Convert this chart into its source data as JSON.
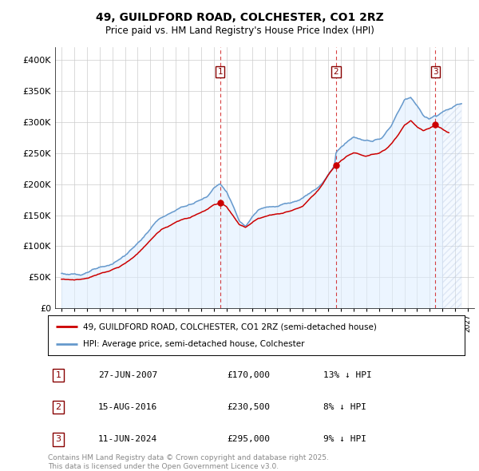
{
  "title": "49, GUILDFORD ROAD, COLCHESTER, CO1 2RZ",
  "subtitle": "Price paid vs. HM Land Registry's House Price Index (HPI)",
  "legend_line1": "49, GUILDFORD ROAD, COLCHESTER, CO1 2RZ (semi-detached house)",
  "legend_line2": "HPI: Average price, semi-detached house, Colchester",
  "transactions": [
    {
      "num": 1,
      "date": "27-JUN-2007",
      "price": 170000,
      "hpi_diff": "13% ↓ HPI",
      "year": 2007.49
    },
    {
      "num": 2,
      "date": "15-AUG-2016",
      "price": 230500,
      "hpi_diff": "8% ↓ HPI",
      "year": 2016.62
    },
    {
      "num": 3,
      "date": "11-JUN-2024",
      "price": 295000,
      "hpi_diff": "9% ↓ HPI",
      "year": 2024.44
    }
  ],
  "footer": "Contains HM Land Registry data © Crown copyright and database right 2025.\nThis data is licensed under the Open Government Licence v3.0.",
  "line_color_red": "#cc0000",
  "line_color_blue": "#6699cc",
  "fill_color_blue": "#ddeeff",
  "background_color": "#ffffff",
  "grid_color": "#cccccc",
  "ylim": [
    0,
    420000
  ],
  "yticks": [
    0,
    50000,
    100000,
    150000,
    200000,
    250000,
    300000,
    350000,
    400000
  ],
  "xlim_start": 1994.5,
  "xlim_end": 2027.5,
  "hatch_start": 2025.0
}
